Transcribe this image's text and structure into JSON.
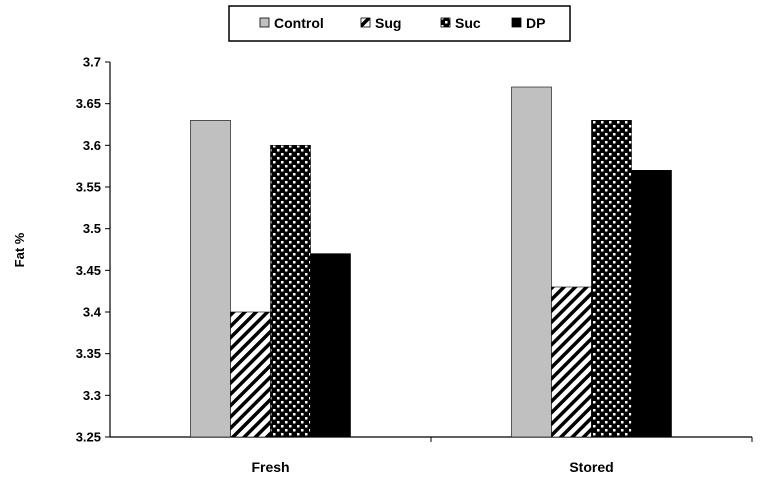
{
  "chart_data": {
    "type": "bar",
    "title": "",
    "xlabel": "",
    "ylabel": "Fat %",
    "categories": [
      "Fresh",
      "Stored"
    ],
    "series": [
      {
        "name": "Control",
        "values": [
          3.63,
          3.67
        ],
        "color": "#c0c0c0",
        "pattern": "solid-gray"
      },
      {
        "name": "Sug",
        "values": [
          3.4,
          3.43
        ],
        "color": "#000000",
        "pattern": "diagonal-hatch"
      },
      {
        "name": "Suc",
        "values": [
          3.6,
          3.63
        ],
        "color": "#000000",
        "pattern": "checkerboard"
      },
      {
        "name": "DP",
        "values": [
          3.47,
          3.57
        ],
        "color": "#000000",
        "pattern": "solid-black"
      }
    ],
    "ylim": [
      3.25,
      3.7
    ],
    "yticks": [
      "3.25",
      "3.3",
      "3.35",
      "3.4",
      "3.45",
      "3.5",
      "3.55",
      "3.6",
      "3.65",
      "3.7"
    ],
    "grid": false,
    "legend_position": "top-center"
  }
}
